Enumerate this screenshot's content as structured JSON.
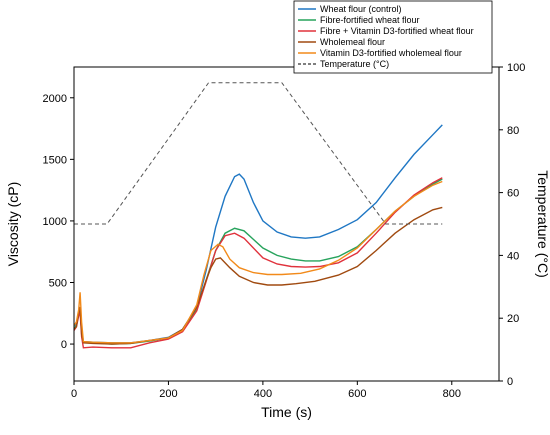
{
  "chart_data": {
    "type": "line",
    "xlabel": "Time (s)",
    "ylabel": "Viscosity (cP)",
    "y2label": "Temperature (°C)",
    "xlim": [
      0,
      900
    ],
    "ylim": [
      -300,
      2250
    ],
    "y2lim": [
      0,
      100
    ],
    "x_ticks": [
      0,
      200,
      400,
      600,
      800
    ],
    "y_ticks": [
      0,
      500,
      1000,
      1500,
      2000
    ],
    "y2_ticks": [
      0,
      20,
      40,
      60,
      80,
      100
    ],
    "grid": false,
    "legend_position": "top-right",
    "series": [
      {
        "name": "Wheat flour (control)",
        "color": "#1f77c4",
        "axis": "left",
        "style": "solid",
        "points": [
          [
            0,
            150
          ],
          [
            5,
            160
          ],
          [
            10,
            260
          ],
          [
            13,
            300
          ],
          [
            16,
            120
          ],
          [
            20,
            20
          ],
          [
            40,
            15
          ],
          [
            80,
            10
          ],
          [
            120,
            10
          ],
          [
            160,
            30
          ],
          [
            200,
            55
          ],
          [
            230,
            120
          ],
          [
            260,
            300
          ],
          [
            280,
            600
          ],
          [
            300,
            950
          ],
          [
            320,
            1200
          ],
          [
            340,
            1360
          ],
          [
            350,
            1380
          ],
          [
            360,
            1340
          ],
          [
            380,
            1150
          ],
          [
            400,
            1000
          ],
          [
            430,
            910
          ],
          [
            460,
            870
          ],
          [
            490,
            860
          ],
          [
            520,
            870
          ],
          [
            560,
            930
          ],
          [
            600,
            1010
          ],
          [
            640,
            1150
          ],
          [
            680,
            1350
          ],
          [
            720,
            1540
          ],
          [
            760,
            1700
          ],
          [
            780,
            1780
          ]
        ]
      },
      {
        "name": "Fibre-fortified wheat flour",
        "color": "#27a35c",
        "axis": "left",
        "style": "solid",
        "points": [
          [
            0,
            130
          ],
          [
            5,
            150
          ],
          [
            10,
            250
          ],
          [
            13,
            280
          ],
          [
            16,
            100
          ],
          [
            20,
            15
          ],
          [
            40,
            10
          ],
          [
            80,
            0
          ],
          [
            120,
            5
          ],
          [
            160,
            25
          ],
          [
            200,
            50
          ],
          [
            230,
            110
          ],
          [
            260,
            280
          ],
          [
            280,
            520
          ],
          [
            300,
            760
          ],
          [
            320,
            900
          ],
          [
            340,
            940
          ],
          [
            360,
            920
          ],
          [
            380,
            850
          ],
          [
            400,
            780
          ],
          [
            430,
            720
          ],
          [
            460,
            690
          ],
          [
            490,
            675
          ],
          [
            520,
            675
          ],
          [
            560,
            710
          ],
          [
            600,
            790
          ],
          [
            640,
            930
          ],
          [
            680,
            1080
          ],
          [
            720,
            1200
          ],
          [
            760,
            1300
          ],
          [
            780,
            1340
          ]
        ]
      },
      {
        "name": "Fibre + Vitamin D3-fortified wheat flour",
        "color": "#e0323c",
        "axis": "left",
        "style": "solid",
        "points": [
          [
            0,
            110
          ],
          [
            5,
            140
          ],
          [
            10,
            230
          ],
          [
            13,
            260
          ],
          [
            16,
            60
          ],
          [
            20,
            -30
          ],
          [
            40,
            -25
          ],
          [
            80,
            -30
          ],
          [
            120,
            -30
          ],
          [
            160,
            10
          ],
          [
            200,
            40
          ],
          [
            230,
            100
          ],
          [
            260,
            270
          ],
          [
            280,
            510
          ],
          [
            300,
            760
          ],
          [
            320,
            880
          ],
          [
            340,
            900
          ],
          [
            360,
            860
          ],
          [
            380,
            780
          ],
          [
            400,
            700
          ],
          [
            430,
            650
          ],
          [
            460,
            630
          ],
          [
            490,
            625
          ],
          [
            520,
            630
          ],
          [
            560,
            660
          ],
          [
            600,
            740
          ],
          [
            640,
            900
          ],
          [
            680,
            1070
          ],
          [
            720,
            1210
          ],
          [
            760,
            1310
          ],
          [
            780,
            1350
          ]
        ]
      },
      {
        "name": "Wholemeal flour",
        "color": "#a04a10",
        "axis": "left",
        "style": "solid",
        "points": [
          [
            0,
            120
          ],
          [
            5,
            140
          ],
          [
            10,
            260
          ],
          [
            13,
            300
          ],
          [
            16,
            80
          ],
          [
            20,
            10
          ],
          [
            40,
            5
          ],
          [
            80,
            0
          ],
          [
            120,
            5
          ],
          [
            160,
            30
          ],
          [
            200,
            50
          ],
          [
            230,
            120
          ],
          [
            260,
            300
          ],
          [
            280,
            520
          ],
          [
            290,
            620
          ],
          [
            300,
            690
          ],
          [
            310,
            700
          ],
          [
            330,
            620
          ],
          [
            350,
            550
          ],
          [
            380,
            500
          ],
          [
            410,
            480
          ],
          [
            440,
            480
          ],
          [
            470,
            490
          ],
          [
            510,
            510
          ],
          [
            560,
            560
          ],
          [
            600,
            630
          ],
          [
            640,
            760
          ],
          [
            680,
            900
          ],
          [
            720,
            1010
          ],
          [
            760,
            1090
          ],
          [
            780,
            1110
          ]
        ]
      },
      {
        "name": "Vitamin D3-fortified wholemeal flour",
        "color": "#f28a1a",
        "axis": "left",
        "style": "solid",
        "points": [
          [
            0,
            150
          ],
          [
            5,
            180
          ],
          [
            10,
            280
          ],
          [
            13,
            420
          ],
          [
            16,
            180
          ],
          [
            20,
            20
          ],
          [
            40,
            15
          ],
          [
            80,
            10
          ],
          [
            120,
            10
          ],
          [
            160,
            30
          ],
          [
            200,
            50
          ],
          [
            230,
            110
          ],
          [
            260,
            320
          ],
          [
            275,
            560
          ],
          [
            290,
            760
          ],
          [
            305,
            810
          ],
          [
            315,
            790
          ],
          [
            330,
            690
          ],
          [
            350,
            620
          ],
          [
            380,
            580
          ],
          [
            410,
            565
          ],
          [
            440,
            565
          ],
          [
            480,
            575
          ],
          [
            520,
            610
          ],
          [
            560,
            680
          ],
          [
            600,
            780
          ],
          [
            640,
            930
          ],
          [
            680,
            1080
          ],
          [
            720,
            1200
          ],
          [
            760,
            1290
          ],
          [
            780,
            1320
          ]
        ]
      },
      {
        "name": "Temperature (°C)",
        "color": "#555555",
        "axis": "right",
        "style": "dashed",
        "points": [
          [
            0,
            50
          ],
          [
            70,
            50
          ],
          [
            285,
            95
          ],
          [
            440,
            95
          ],
          [
            660,
            50
          ],
          [
            780,
            50
          ]
        ]
      }
    ]
  }
}
